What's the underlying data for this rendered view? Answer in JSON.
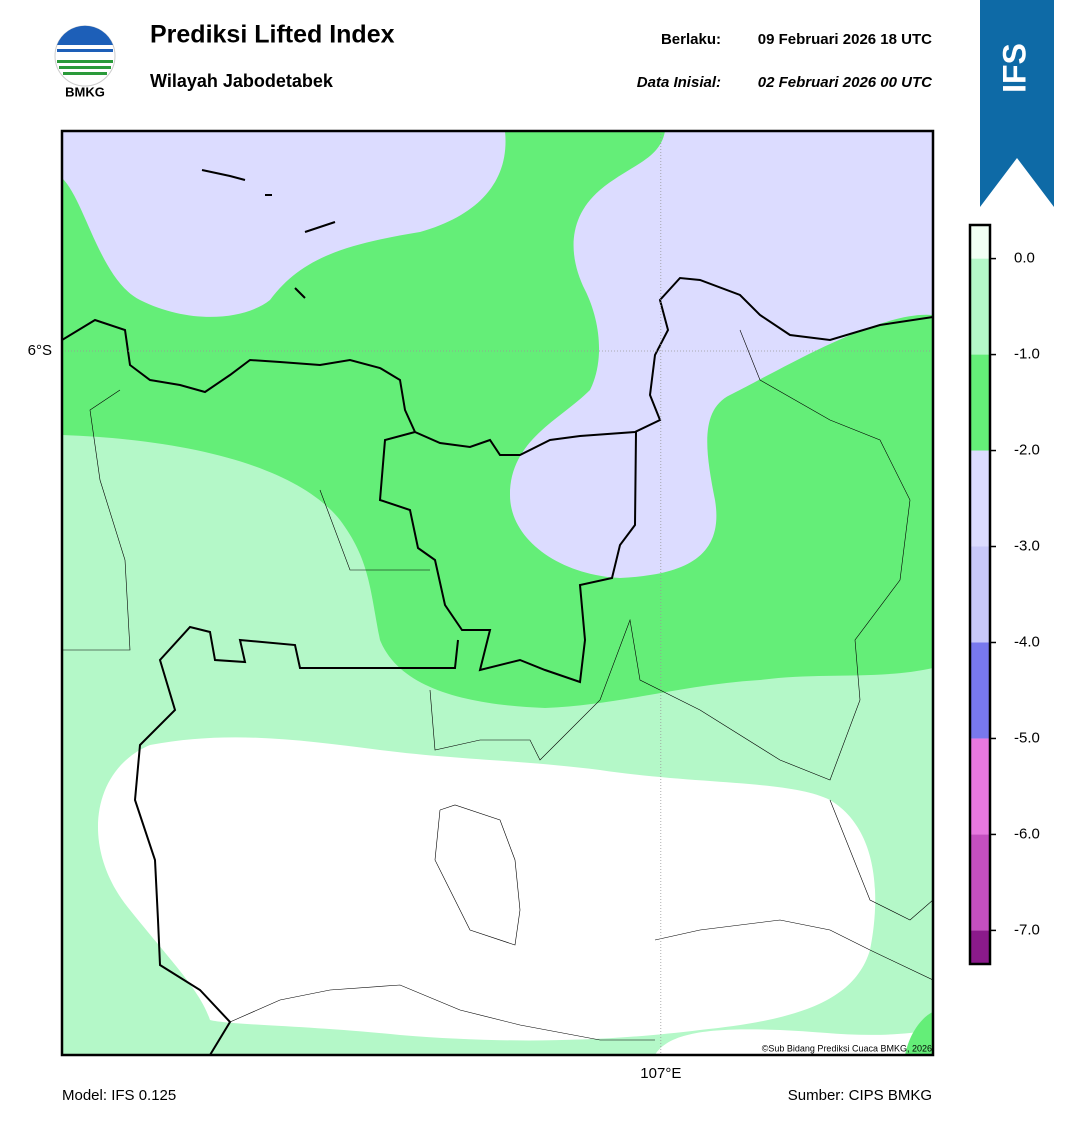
{
  "chart_data": {
    "type": "map",
    "title": "Prediksi Lifted Index",
    "subtitle": "Wilayah Jabodetabek",
    "valid_label": "Berlaku:",
    "valid_time": "09 Februari 2026 18 UTC",
    "init_label": "Data Inisial:",
    "init_time": "02 Februari 2026 00 UTC",
    "logo_text": "BMKG",
    "badge": "IFS",
    "model": "Model: IFS 0.125",
    "source": "Sumber: CIPS BMKG",
    "copyright": "©Sub Bidang Prediksi Cuaca BMKG, 2026",
    "xlim": [
      105.9,
      107.5
    ],
    "ylim": [
      -6.8,
      -5.75
    ],
    "xticks": [
      {
        "value": 107,
        "label": "107°E"
      }
    ],
    "yticks": [
      {
        "value": -6,
        "label": "6°S"
      }
    ],
    "grid": true,
    "colorbar": {
      "lim": [
        -7.35,
        0.35
      ],
      "bounds": [
        -7.35,
        -7,
        -6,
        -5,
        -4,
        -3,
        -2,
        -1,
        0,
        0.35
      ],
      "colors": [
        "#8b1a8b",
        "#c54fc0",
        "#e878e0",
        "#7878ee",
        "#c8c8fa",
        "#dcdcff",
        "#64ee78",
        "#b4f8c8",
        "#f2fff4"
      ],
      "ticks": [
        {
          "value": 0,
          "label": "0.0"
        },
        {
          "value": -1,
          "label": "-1.0"
        },
        {
          "value": -2,
          "label": "-2.0"
        },
        {
          "value": -3,
          "label": "-3.0"
        },
        {
          "value": -4,
          "label": "-4.0"
        },
        {
          "value": -5,
          "label": "-5.0"
        },
        {
          "value": -6,
          "label": "-6.0"
        },
        {
          "value": -7,
          "label": "-7.0"
        }
      ]
    }
  }
}
